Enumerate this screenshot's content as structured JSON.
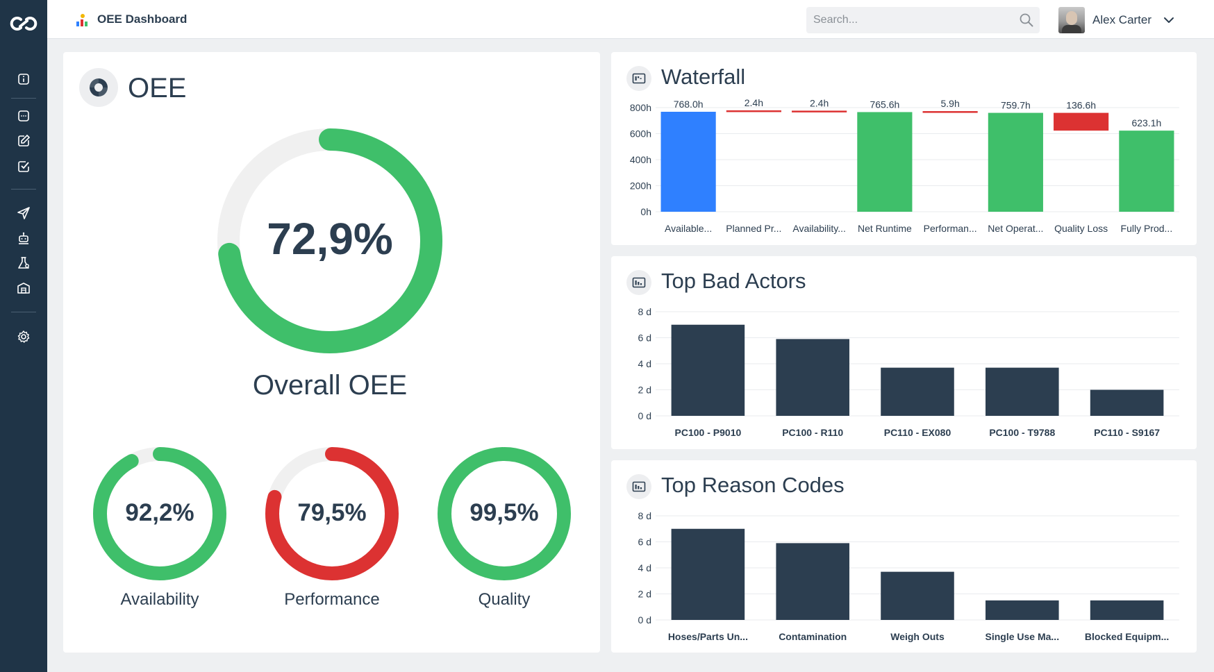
{
  "app": {
    "title": "OEE Dashboard"
  },
  "search": {
    "placeholder": "Search..."
  },
  "user": {
    "name": "Alex Carter"
  },
  "sidebar": {
    "icons": [
      "info-icon",
      "chat-icon",
      "edit-icon",
      "task-check-icon",
      "send-icon",
      "robot-icon",
      "lab-flask-icon",
      "warehouse-icon",
      "settings-gear-icon"
    ]
  },
  "colors": {
    "green": "#3fbf6a",
    "red": "#dc3232",
    "blue": "#2f80ff",
    "navy": "#2c3e50",
    "track": "#f0f0f0"
  },
  "oee": {
    "title": "OEE",
    "overall": {
      "value": 72.9,
      "display": "72,9%",
      "label": "Overall OEE",
      "color": "green"
    },
    "metrics": [
      {
        "key": "availability",
        "value": 92.2,
        "display": "92,2%",
        "label": "Availability",
        "color": "green"
      },
      {
        "key": "performance",
        "value": 79.5,
        "display": "79,5%",
        "label": "Performance",
        "color": "red"
      },
      {
        "key": "quality",
        "value": 99.5,
        "display": "99,5%",
        "label": "Quality",
        "color": "green"
      }
    ]
  },
  "waterfall": {
    "title": "Waterfall"
  },
  "top_bad_actors": {
    "title": "Top Bad Actors"
  },
  "top_reason_codes": {
    "title": "Top Reason Codes"
  },
  "chart_data": [
    {
      "id": "waterfall",
      "type": "bar",
      "title": "Waterfall",
      "categories": [
        "Available...",
        "Planned Pr...",
        "Availability...",
        "Net Runtime",
        "Performan...",
        "Net Operat...",
        "Quality Loss",
        "Fully Prod..."
      ],
      "values": [
        768.0,
        2.4,
        2.4,
        765.6,
        5.9,
        759.7,
        136.6,
        623.1
      ],
      "bases": [
        0,
        765.6,
        763.2,
        0,
        759.7,
        0,
        623.1,
        0
      ],
      "data_labels": [
        "768.0h",
        "2.4h",
        "2.4h",
        "765.6h",
        "5.9h",
        "759.7h",
        "136.6h",
        "623.1h"
      ],
      "bar_colors": [
        "blue",
        "red",
        "red",
        "green",
        "red",
        "green",
        "red",
        "green"
      ],
      "yticks": [
        "0h",
        "200h",
        "400h",
        "600h",
        "800h"
      ],
      "ylim": [
        0,
        800
      ],
      "grid": true
    },
    {
      "id": "top_bad_actors",
      "type": "bar",
      "title": "Top Bad Actors",
      "categories": [
        "PC100 - P9010",
        "PC100 - R110",
        "PC110 - EX080",
        "PC100 - T9788",
        "PC110 - S9167"
      ],
      "values": [
        7.0,
        5.9,
        3.7,
        3.7,
        2.0
      ],
      "yticks": [
        "0 d",
        "2 d",
        "4 d",
        "6 d",
        "8 d"
      ],
      "ylim": [
        0,
        8
      ],
      "grid": true
    },
    {
      "id": "top_reason_codes",
      "type": "bar",
      "title": "Top Reason Codes",
      "categories": [
        "Hoses/Parts Un...",
        "Contamination",
        "Weigh Outs",
        "Single Use Ma...",
        "Blocked Equipm..."
      ],
      "values": [
        7.0,
        5.9,
        3.7,
        1.5,
        1.5
      ],
      "yticks": [
        "0 d",
        "2 d",
        "4 d",
        "6 d",
        "8 d"
      ],
      "ylim": [
        0,
        8
      ],
      "grid": true
    }
  ]
}
